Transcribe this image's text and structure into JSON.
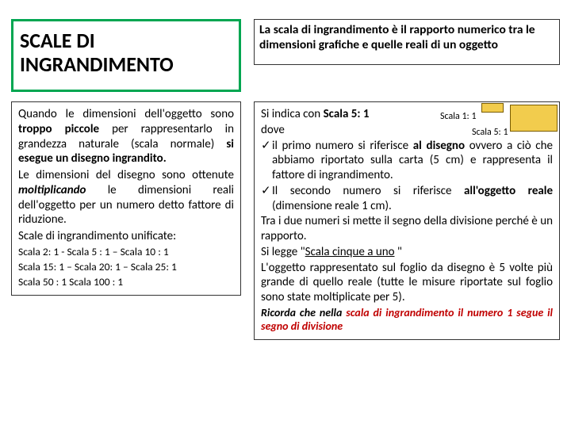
{
  "title": "SCALE DI INGRANDIMENTO",
  "definition": "La scala di ingrandimento è il rapporto numerico tra le dimensioni grafiche e quelle reali di un oggetto",
  "left": {
    "p1a": "Quando le dimensioni dell'oggetto sono ",
    "p1b": "troppo piccole",
    "p1c": " per rappresentarlo in grandezza naturale (scala normale) ",
    "p1d": "si esegue un disegno ingrandito.",
    "p2a": "Le dimensioni del disegno sono ottenute ",
    "p2b": "moltiplicando",
    "p2c": " le dimensioni reali dell'oggetto per un numero detto fattore di riduzione.",
    "p3": "Scale di ingrandimento unificate:",
    "scales1": "Scala 2: 1 - Scala 5 : 1 – Scala 10 : 1",
    "scales2": "Scala 15: 1 – Scala 20: 1 – Scala 25: 1",
    "scales3": "Scala 50 : 1 Scala 100 : 1"
  },
  "right": {
    "l1a": "Si indica con ",
    "l1b": "Scala 5: 1",
    "l2": "dove",
    "b1a": "il primo numero si riferisce ",
    "b1b": "al disegno",
    "b1c": " ovvero a ciò che abbiamo riportato sulla carta (5 cm) e rappresenta il fattore di ingrandimento.",
    "b2a": "Il secondo numero si riferisce ",
    "b2b": "all'oggetto reale",
    "b2c": " (dimensione reale 1 cm).",
    "l3": "Tra i due numeri si mette il segno della divisione perché è un rapporto.",
    "l4a": "Si legge \"",
    "l4b": "Scala cinque a uno",
    "l4c": " \"",
    "l5": "L'oggetto rappresentato sul foglio da disegno è 5 volte più grande di quello reale (tutte le misure riportate sul foglio sono state moltiplicate per 5).",
    "l6a": "Ricorda che nella ",
    "l6b": "scala di ingrandimento il numero 1 segue il segno di divisione"
  },
  "labels": {
    "s1": "Scala 1: 1",
    "s5": "Scala 5: 1"
  }
}
